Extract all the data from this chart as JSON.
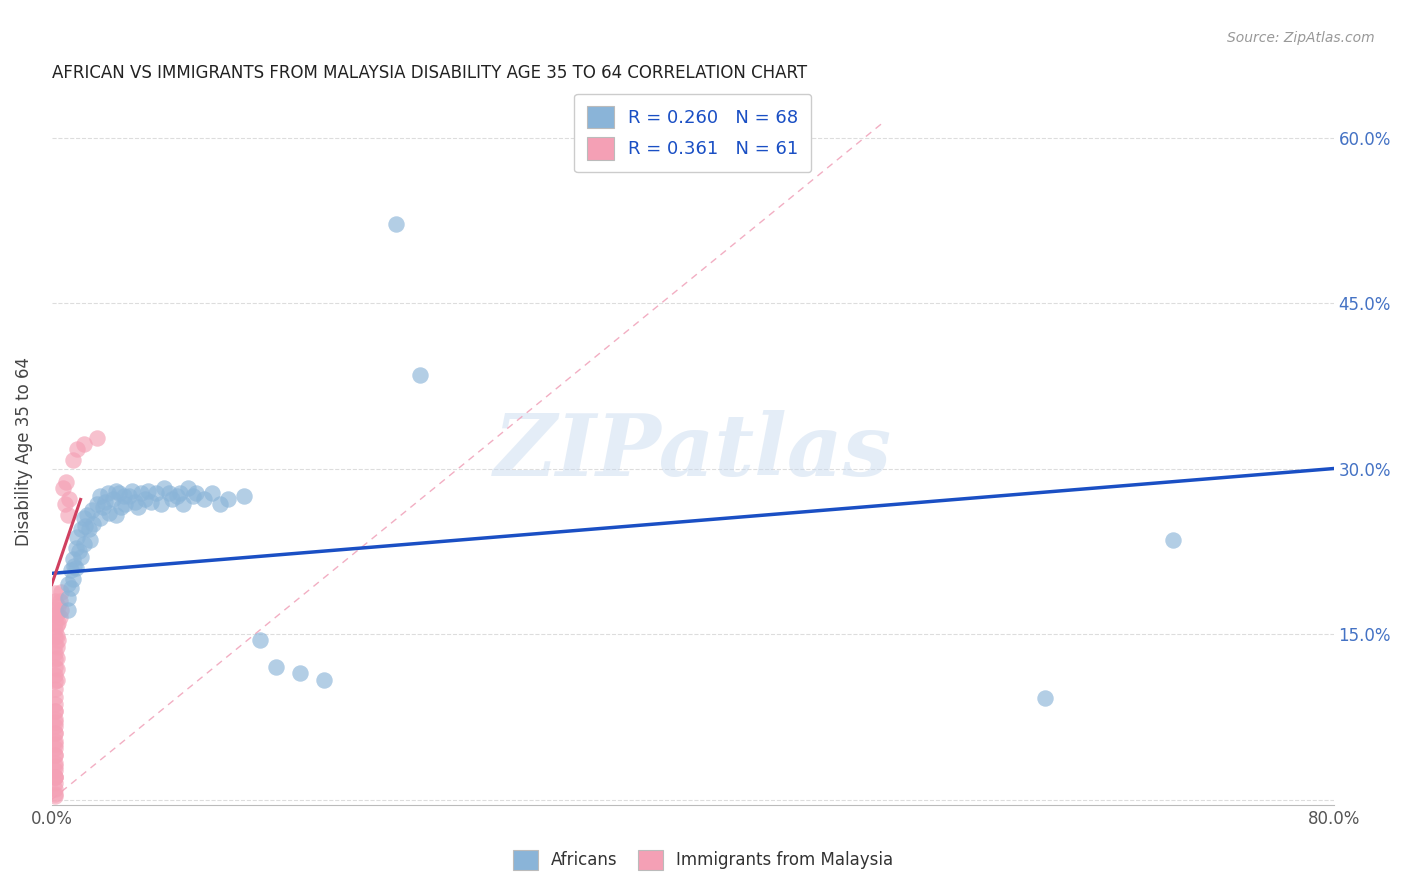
{
  "title": "AFRICAN VS IMMIGRANTS FROM MALAYSIA DISABILITY AGE 35 TO 64 CORRELATION CHART",
  "source": "Source: ZipAtlas.com",
  "ylabel": "Disability Age 35 to 64",
  "xlim": [
    0.0,
    0.8
  ],
  "ylim": [
    -0.005,
    0.635
  ],
  "color_blue": "#8AB4D8",
  "color_pink": "#F4A0B5",
  "color_blue_line": "#1A4FC4",
  "color_pink_line": "#D04060",
  "color_diag_dash": "#F0A0B8",
  "watermark_text": "ZIPatlas",
  "r_blue": "0.260",
  "n_blue": "68",
  "r_pink": "0.361",
  "n_pink": "61",
  "africans_x": [
    0.01,
    0.01,
    0.01,
    0.012,
    0.012,
    0.013,
    0.013,
    0.014,
    0.015,
    0.015,
    0.016,
    0.017,
    0.018,
    0.018,
    0.02,
    0.02,
    0.021,
    0.022,
    0.023,
    0.024,
    0.025,
    0.026,
    0.028,
    0.03,
    0.03,
    0.032,
    0.033,
    0.035,
    0.036,
    0.038,
    0.04,
    0.04,
    0.042,
    0.043,
    0.045,
    0.046,
    0.048,
    0.05,
    0.052,
    0.054,
    0.056,
    0.058,
    0.06,
    0.062,
    0.065,
    0.068,
    0.07,
    0.073,
    0.075,
    0.078,
    0.08,
    0.082,
    0.085,
    0.088,
    0.09,
    0.095,
    0.1,
    0.105,
    0.11,
    0.12,
    0.13,
    0.14,
    0.155,
    0.17,
    0.215,
    0.23,
    0.62,
    0.7
  ],
  "africans_y": [
    0.195,
    0.183,
    0.172,
    0.208,
    0.192,
    0.218,
    0.2,
    0.212,
    0.228,
    0.21,
    0.238,
    0.225,
    0.245,
    0.22,
    0.255,
    0.232,
    0.248,
    0.258,
    0.245,
    0.235,
    0.262,
    0.25,
    0.268,
    0.275,
    0.255,
    0.265,
    0.27,
    0.278,
    0.26,
    0.272,
    0.28,
    0.258,
    0.278,
    0.265,
    0.275,
    0.268,
    0.275,
    0.28,
    0.27,
    0.265,
    0.278,
    0.272,
    0.28,
    0.27,
    0.278,
    0.268,
    0.282,
    0.278,
    0.272,
    0.275,
    0.278,
    0.268,
    0.282,
    0.275,
    0.278,
    0.272,
    0.278,
    0.268,
    0.272,
    0.275,
    0.145,
    0.12,
    0.115,
    0.108,
    0.522,
    0.385,
    0.092,
    0.235
  ],
  "malaysia_x": [
    0.002,
    0.002,
    0.002,
    0.002,
    0.002,
    0.002,
    0.002,
    0.002,
    0.002,
    0.002,
    0.002,
    0.002,
    0.002,
    0.002,
    0.002,
    0.002,
    0.002,
    0.002,
    0.002,
    0.002,
    0.002,
    0.002,
    0.002,
    0.002,
    0.002,
    0.002,
    0.002,
    0.002,
    0.002,
    0.002,
    0.002,
    0.002,
    0.002,
    0.002,
    0.002,
    0.002,
    0.002,
    0.002,
    0.003,
    0.003,
    0.003,
    0.003,
    0.003,
    0.003,
    0.003,
    0.004,
    0.004,
    0.004,
    0.005,
    0.005,
    0.006,
    0.006,
    0.007,
    0.008,
    0.009,
    0.01,
    0.011,
    0.013,
    0.016,
    0.02,
    0.028
  ],
  "malaysia_y": [
    0.02,
    0.027,
    0.033,
    0.04,
    0.047,
    0.053,
    0.06,
    0.067,
    0.073,
    0.08,
    0.087,
    0.093,
    0.1,
    0.107,
    0.113,
    0.12,
    0.127,
    0.133,
    0.14,
    0.147,
    0.153,
    0.16,
    0.167,
    0.173,
    0.18,
    0.187,
    0.02,
    0.03,
    0.04,
    0.05,
    0.06,
    0.07,
    0.08,
    0.005,
    0.01,
    0.015,
    0.02,
    0.003,
    0.168,
    0.158,
    0.148,
    0.138,
    0.128,
    0.118,
    0.108,
    0.175,
    0.16,
    0.145,
    0.18,
    0.165,
    0.188,
    0.172,
    0.282,
    0.268,
    0.288,
    0.258,
    0.272,
    0.308,
    0.318,
    0.322,
    0.328
  ],
  "blue_line_x": [
    0.0,
    0.8
  ],
  "blue_line_y": [
    0.205,
    0.3
  ],
  "pink_line_x": [
    0.0,
    0.018
  ],
  "pink_line_y": [
    0.195,
    0.272
  ],
  "diag_line_x": [
    0.0,
    0.52
  ],
  "diag_line_y": [
    0.0,
    0.615
  ]
}
